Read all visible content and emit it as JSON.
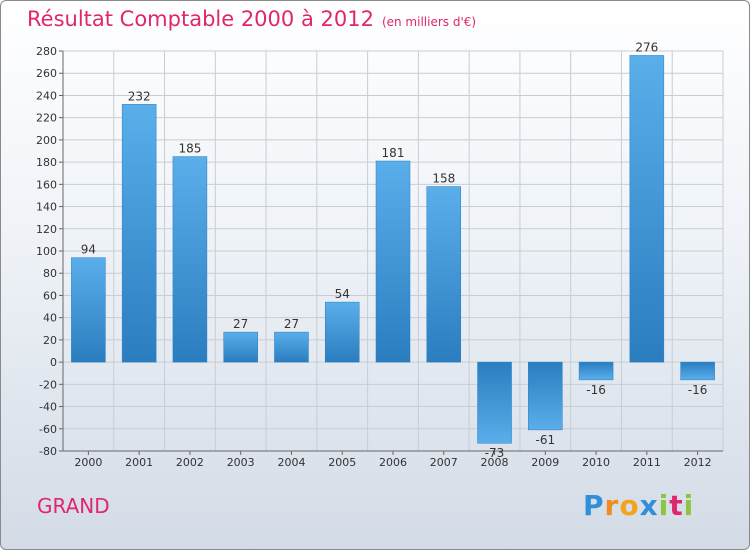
{
  "title": "Résultat Comptable 2000 à 2012",
  "subtitle": "(en milliers d'€)",
  "commune": "GRAND",
  "logo": {
    "text": "Proxiti",
    "letters": [
      "P",
      "r",
      "o",
      "x",
      "i",
      "t",
      "i"
    ]
  },
  "colors": {
    "title": "#e0266e",
    "bar_light": "#5aaeea",
    "bar_dark": "#2a7ec0",
    "grid": "#c8cdd4"
  },
  "chart_data": {
    "type": "bar",
    "title": "Résultat Comptable 2000 à 2012",
    "ylabel": "",
    "xlabel": "",
    "ylim": [
      -80,
      280
    ],
    "yticks": [
      -80,
      -60,
      -40,
      -20,
      0,
      20,
      40,
      60,
      80,
      100,
      120,
      140,
      160,
      180,
      200,
      220,
      240,
      260,
      280
    ],
    "grid": true,
    "categories": [
      "2000",
      "2001",
      "2002",
      "2003",
      "2004",
      "2005",
      "2006",
      "2007",
      "2008",
      "2009",
      "2010",
      "2011",
      "2012"
    ],
    "values": [
      94,
      232,
      185,
      27,
      27,
      54,
      181,
      158,
      -73,
      -61,
      -16,
      276,
      -16
    ],
    "labels": [
      "94",
      "232",
      "185",
      "27",
      "27",
      "54",
      "181",
      "158",
      "-73",
      "-61",
      "-16",
      "276",
      "-16"
    ]
  }
}
